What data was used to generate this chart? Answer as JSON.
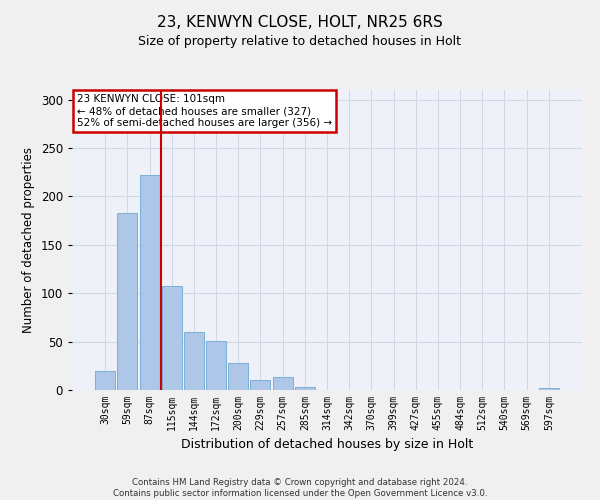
{
  "title1": "23, KENWYN CLOSE, HOLT, NR25 6RS",
  "title2": "Size of property relative to detached houses in Holt",
  "xlabel": "Distribution of detached houses by size in Holt",
  "ylabel": "Number of detached properties",
  "bar_labels": [
    "30sqm",
    "59sqm",
    "87sqm",
    "115sqm",
    "144sqm",
    "172sqm",
    "200sqm",
    "229sqm",
    "257sqm",
    "285sqm",
    "314sqm",
    "342sqm",
    "370sqm",
    "399sqm",
    "427sqm",
    "455sqm",
    "484sqm",
    "512sqm",
    "540sqm",
    "569sqm",
    "597sqm"
  ],
  "bar_values": [
    20,
    183,
    222,
    107,
    60,
    51,
    28,
    10,
    13,
    3,
    0,
    0,
    0,
    0,
    0,
    0,
    0,
    0,
    0,
    0,
    2
  ],
  "bar_color": "#aec6e8",
  "bar_edge_color": "#7bafd4",
  "grid_color": "#d0d8e8",
  "background_color": "#eef2f8",
  "annotation_text": "23 KENWYN CLOSE: 101sqm\n← 48% of detached houses are smaller (327)\n52% of semi-detached houses are larger (356) →",
  "annotation_box_color": "#ffffff",
  "annotation_box_edge": "#cc0000",
  "vline_x": 2.5,
  "vline_color": "#cc0000",
  "ylim": [
    0,
    310
  ],
  "fig_bg": "#f0f0f0",
  "footnote": "Contains HM Land Registry data © Crown copyright and database right 2024.\nContains public sector information licensed under the Open Government Licence v3.0."
}
